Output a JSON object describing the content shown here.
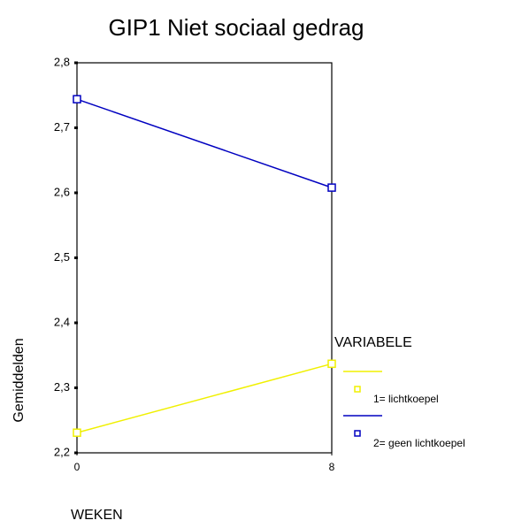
{
  "chart_data": {
    "type": "line",
    "title": "GIP1 Niet sociaal gedrag",
    "x_label": "WEKEN",
    "y_label": "Gemiddelden",
    "legend_title": "VARIABELE",
    "x": [
      0,
      8
    ],
    "xlim": [
      0,
      8
    ],
    "xticks": [
      0,
      8
    ],
    "ylim": [
      2.2,
      2.8
    ],
    "yticks": [
      {
        "value": 2.2,
        "label": "2,2"
      },
      {
        "value": 2.3,
        "label": "2,3"
      },
      {
        "value": 2.4,
        "label": "2,4"
      },
      {
        "value": 2.5,
        "label": "2,5"
      },
      {
        "value": 2.6,
        "label": "2,6"
      },
      {
        "value": 2.7,
        "label": "2,7"
      },
      {
        "value": 2.8,
        "label": "2,8"
      }
    ],
    "series": [
      {
        "name": "1= lichtkoepel",
        "color": "#f0f000",
        "values": [
          2.231,
          2.337
        ]
      },
      {
        "name": "2= geen lichtkoepel",
        "color": "#0000c0",
        "values": [
          2.744,
          2.608
        ]
      }
    ]
  }
}
